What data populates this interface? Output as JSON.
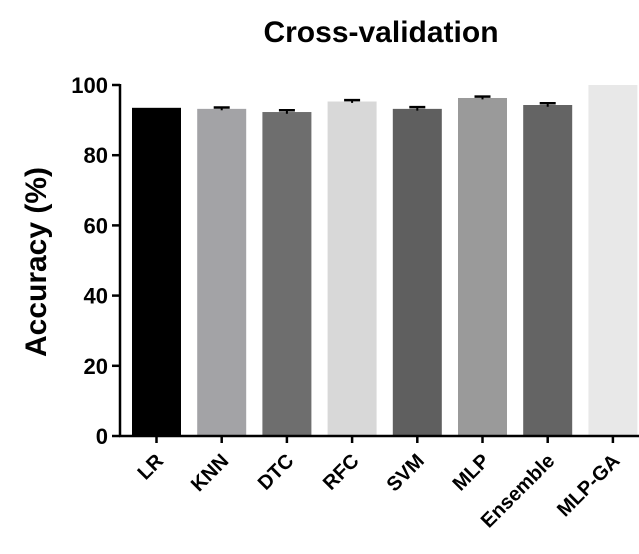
{
  "chart_data": {
    "type": "bar",
    "title": "Cross-validation",
    "ylabel": "Accuracy (%)",
    "xlabel": "",
    "ylim": [
      0,
      100
    ],
    "yticks": [
      0,
      20,
      40,
      60,
      80,
      100
    ],
    "categories": [
      "LR",
      "KNN",
      "DTC",
      "RFC",
      "SVM",
      "MLP",
      "Ensemble",
      "MLP-GA"
    ],
    "values": [
      93.5,
      93.2,
      92.3,
      95.3,
      93.2,
      96.3,
      94.3,
      100
    ],
    "errors": [
      0,
      0.4,
      0.5,
      0.4,
      0.5,
      0.4,
      0.5,
      0
    ],
    "colors": [
      "#000000",
      "#a3a3a6",
      "#6e6e6e",
      "#d8d8d8",
      "#5f5f5f",
      "#9a9a9a",
      "#646464",
      "#e8e8e8"
    ],
    "grid": false,
    "legend": "none"
  }
}
